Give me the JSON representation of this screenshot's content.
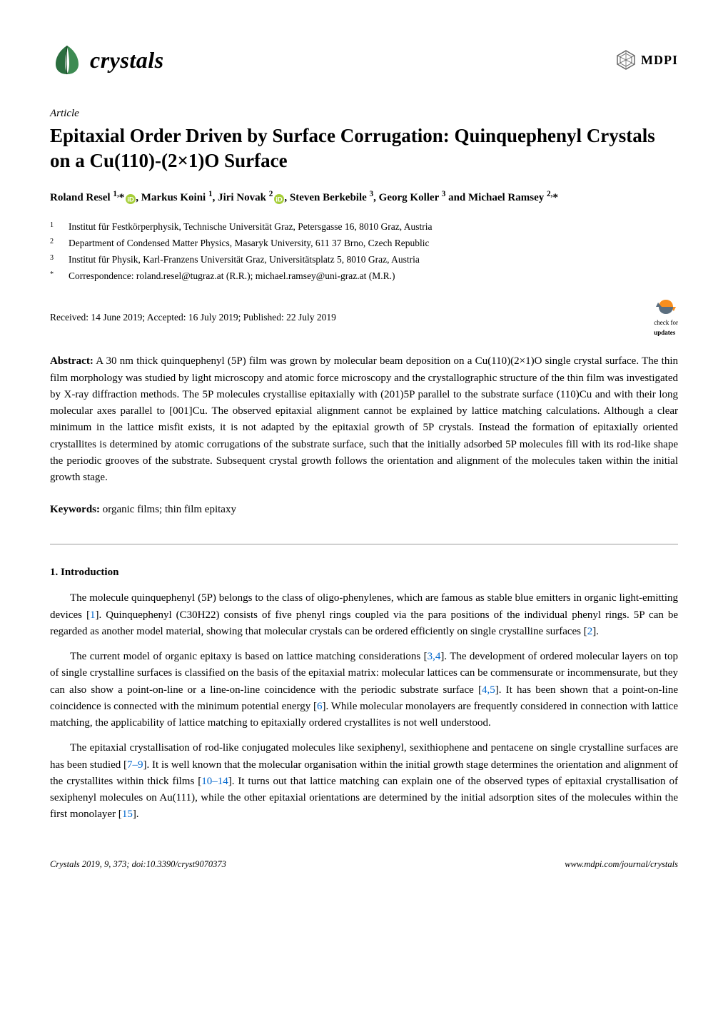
{
  "header": {
    "journal_name": "crystals",
    "publisher": "MDPI",
    "leaf_color": "#2b6e3f",
    "mdpi_hex_color": "#666666"
  },
  "article": {
    "type": "Article",
    "title": "Epitaxial Order Driven by Surface Corrugation: Quinquephenyl Crystals on a Cu(110)-(2×1)O Surface",
    "authors_html": "Roland Resel <sup>1,</sup>*<span class='orcid-icon'><svg viewBox='0 0 16 16'><circle cx='8' cy='8' r='8' fill='#a6ce39'/><text x='8' y='12' text-anchor='middle' fill='#fff' font-size='11' font-family='Arial' font-weight='bold'>iD</text></svg></span>, Markus Koini <sup>1</sup>, Jiri Novak <sup>2</sup><span class='orcid-icon'><svg viewBox='0 0 16 16'><circle cx='8' cy='8' r='8' fill='#a6ce39'/><text x='8' y='12' text-anchor='middle' fill='#fff' font-size='11' font-family='Arial' font-weight='bold'>iD</text></svg></span>, Steven Berkebile <sup>3</sup>, Georg Koller <sup>3</sup> and Michael Ramsey <sup>2,</sup>*",
    "affiliations": [
      {
        "num": "1",
        "text": "Institut für Festkörperphysik, Technische Universität Graz, Petersgasse 16, 8010 Graz, Austria"
      },
      {
        "num": "2",
        "text": "Department of Condensed Matter Physics, Masaryk University, 611 37 Brno, Czech Republic"
      },
      {
        "num": "3",
        "text": "Institut für Physik, Karl-Franzens Universität Graz, Universitätsplatz 5, 8010 Graz, Austria"
      },
      {
        "num": "*",
        "text": "Correspondence: roland.resel@tugraz.at (R.R.); michael.ramsey@uni-graz.at (M.R.)"
      }
    ],
    "received": "Received: 14 June 2019; Accepted: 16 July 2019; Published: 22 July 2019",
    "check_updates_label": "check for",
    "check_updates_label2": "updates",
    "check_icon_color": "#f78e1e"
  },
  "abstract": {
    "label": "Abstract:",
    "text": " A 30 nm thick quinquephenyl (5P) film was grown by molecular beam deposition on a Cu(110)(2×1)O single crystal surface. The thin film morphology was studied by light microscopy and atomic force microscopy and the crystallographic structure of the thin film was investigated by X-ray diffraction methods. The 5P molecules crystallise epitaxially with (201)5P parallel to the substrate surface (110)Cu and with their long molecular axes parallel to [001]Cu. The observed epitaxial alignment cannot be explained by lattice matching calculations. Although a clear minimum in the lattice misfit exists, it is not adapted by the epitaxial growth of 5P crystals. Instead the formation of epitaxially oriented crystallites is determined by atomic corrugations of the substrate surface, such that the initially adsorbed 5P molecules fill with its rod-like shape the periodic grooves of the substrate. Subsequent crystal growth follows the orientation and alignment of the molecules taken within the initial growth stage."
  },
  "keywords": {
    "label": "Keywords:",
    "text": " organic films; thin film epitaxy"
  },
  "sections": {
    "intro_title": "1. Introduction",
    "intro_paras": [
      "The molecule quinquephenyl (5P) belongs to the class of oligo-phenylenes, which are famous as stable blue emitters in organic light-emitting devices [1]. Quinquephenyl (C30H22) consists of five phenyl rings coupled via the para positions of the individual phenyl rings. 5P can be regarded as another model material, showing that molecular crystals can be ordered efficiently on single crystalline surfaces [2].",
      "The current model of organic epitaxy is based on lattice matching considerations [3,4]. The development of ordered molecular layers on top of single crystalline surfaces is classified on the basis of the epitaxial matrix: molecular lattices can be commensurate or incommensurate, but they can also show a point-on-line or a line-on-line coincidence with the periodic substrate surface [4,5]. It has been shown that a point-on-line coincidence is connected with the minimum potential energy [6]. While molecular monolayers are frequently considered in connection with lattice matching, the applicability of lattice matching to epitaxially ordered crystallites is not well understood.",
      "The epitaxial crystallisation of rod-like conjugated molecules like sexiphenyl, sexithiophene and pentacene on single crystalline surfaces are has been studied [7–9]. It is well known that the molecular organisation within the initial growth stage determines the orientation and alignment of the crystallites within thick films [10–14]. It turns out that lattice matching can explain one of the observed types of epitaxial crystallisation of sexiphenyl molecules on Au(111), while the other epitaxial orientations are determined by the initial adsorption sites of the molecules within the first monolayer [15]."
    ]
  },
  "footer": {
    "left": "Crystals 2019, 9, 373; doi:10.3390/cryst9070373",
    "right": "www.mdpi.com/journal/crystals"
  },
  "ref_color": "#0066cc"
}
